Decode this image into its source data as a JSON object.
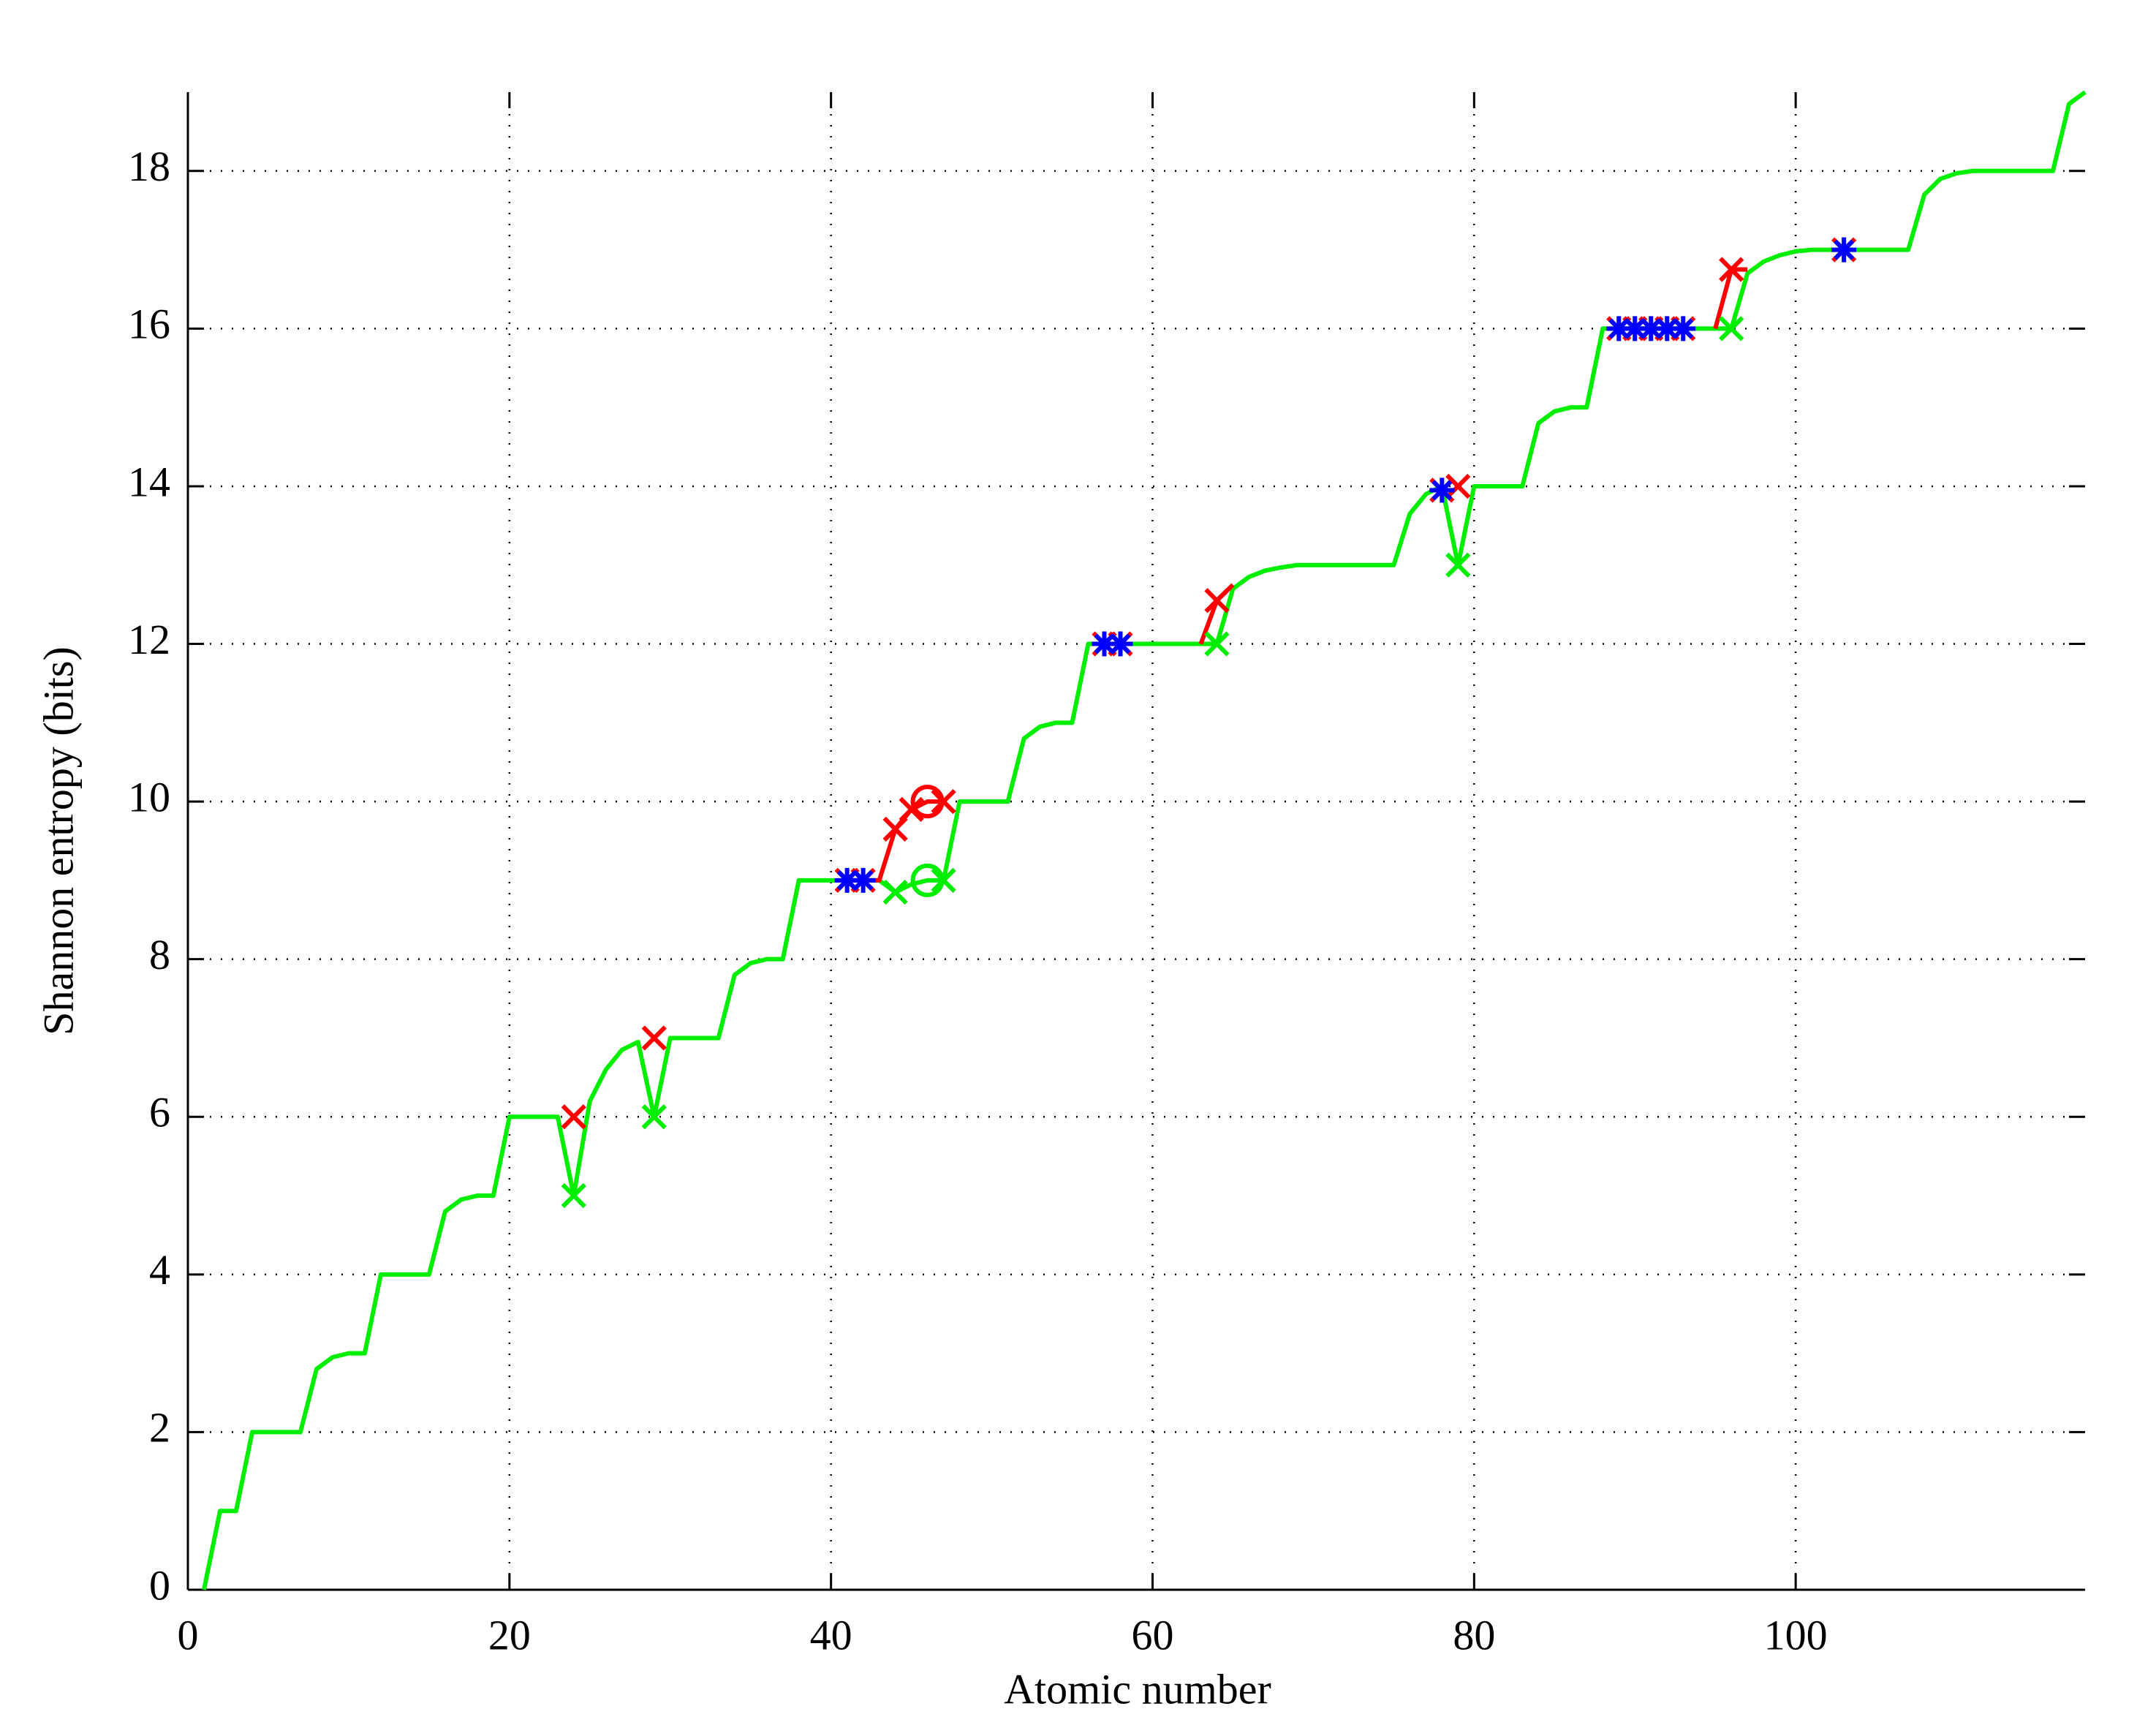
{
  "chart_data": {
    "type": "line",
    "xlabel": "Atomic number",
    "ylabel": "Shannon entropy (bits)",
    "xlim": [
      0,
      118
    ],
    "ylim": [
      0,
      19
    ],
    "xticks": [
      0,
      20,
      40,
      60,
      80,
      100
    ],
    "yticks": [
      0,
      2,
      4,
      6,
      8,
      10,
      12,
      14,
      16,
      18
    ],
    "grid": true,
    "series": [
      {
        "color": "#00ee00",
        "line": "solid",
        "marker": "none",
        "x": [
          1,
          2,
          3,
          4,
          5,
          6,
          7,
          8,
          9,
          10,
          11,
          12,
          13,
          14,
          15,
          16,
          17,
          18,
          19,
          20,
          21,
          22,
          23,
          24,
          25,
          26,
          27,
          28,
          29,
          30,
          31,
          32,
          33,
          34,
          35,
          36,
          37,
          38,
          39,
          40,
          41,
          42,
          43,
          44,
          45,
          46,
          47,
          48,
          49,
          50,
          51,
          52,
          53,
          54,
          55,
          56,
          57,
          58,
          59,
          60,
          61,
          62,
          63,
          64,
          65,
          66,
          67,
          68,
          69,
          70,
          71,
          72,
          73,
          74,
          75,
          76,
          77,
          78,
          79,
          80,
          81,
          82,
          83,
          84,
          85,
          86,
          87,
          88,
          89,
          90,
          91,
          92,
          93,
          94,
          95,
          96,
          97,
          98,
          99,
          100,
          101,
          102,
          103,
          104,
          105,
          106,
          107,
          108,
          109,
          110,
          111,
          112,
          113,
          114,
          115,
          116,
          117,
          118
        ],
        "values": [
          0,
          1,
          1,
          2,
          2,
          2,
          2,
          2.8,
          2.95,
          3,
          3,
          4,
          4,
          4,
          4,
          4.8,
          4.95,
          5,
          5,
          6,
          6,
          6,
          6,
          5,
          6.2,
          6.6,
          6.85,
          6.95,
          6,
          7,
          7,
          7,
          7,
          7.8,
          7.95,
          8,
          8,
          9,
          9,
          9,
          9,
          9,
          9,
          8.85,
          8.95,
          9,
          9,
          10,
          10,
          10,
          10,
          10.8,
          10.95,
          11,
          11,
          12,
          12,
          12,
          12,
          12,
          12,
          12,
          12,
          12,
          12.7,
          12.85,
          12.93,
          12.97,
          13,
          13,
          13,
          13,
          13,
          13,
          13,
          13.65,
          13.9,
          14,
          13,
          14,
          14,
          14,
          14,
          14.8,
          14.95,
          15,
          15,
          16,
          16,
          16,
          16,
          16,
          16,
          16,
          16,
          16,
          16.7,
          16.85,
          16.93,
          16.98,
          17,
          17,
          17,
          17,
          17,
          17,
          17,
          17.7,
          17.9,
          17.97,
          18,
          18,
          18,
          18,
          18,
          18,
          18.85,
          19
        ]
      },
      {
        "color": "#ff0000",
        "line": "solid",
        "marker": "none",
        "x": [
          41,
          42,
          43,
          44,
          45,
          46,
          47,
          null,
          63,
          64,
          65,
          null,
          95,
          96,
          97
        ],
        "values": [
          9,
          9,
          9,
          9.65,
          9.9,
          10,
          10,
          null,
          12,
          12.55,
          12.75,
          null,
          16,
          16.75,
          16.75
        ]
      },
      {
        "color": "#00ee00",
        "line": "none",
        "marker": "x",
        "x": [
          24,
          29,
          44,
          47,
          64,
          79,
          96
        ],
        "values": [
          5,
          6,
          8.85,
          9,
          12,
          13,
          16
        ]
      },
      {
        "color": "#ff0000",
        "line": "none",
        "marker": "x",
        "x": [
          24,
          29,
          41,
          42,
          44,
          45,
          47,
          57,
          58,
          64,
          78,
          79,
          89,
          90,
          91,
          92,
          93,
          96,
          103
        ],
        "values": [
          6,
          7,
          9,
          9,
          9.65,
          9.9,
          10,
          12,
          12,
          12.55,
          13.95,
          14,
          16,
          16,
          16,
          16,
          16,
          16.75,
          17
        ]
      },
      {
        "color": "#0000ff",
        "line": "none",
        "marker": "star",
        "x": [
          41,
          42,
          57,
          58,
          78,
          89,
          90,
          91,
          92,
          93,
          103
        ],
        "values": [
          9,
          9,
          12,
          12,
          13.95,
          16,
          16,
          16,
          16,
          16,
          17
        ]
      },
      {
        "color": "#ff0000",
        "line": "none",
        "marker": "circle",
        "x": [
          46
        ],
        "values": [
          10
        ]
      },
      {
        "color": "#00ee00",
        "line": "none",
        "marker": "circle",
        "x": [
          46
        ],
        "values": [
          9
        ]
      }
    ]
  }
}
